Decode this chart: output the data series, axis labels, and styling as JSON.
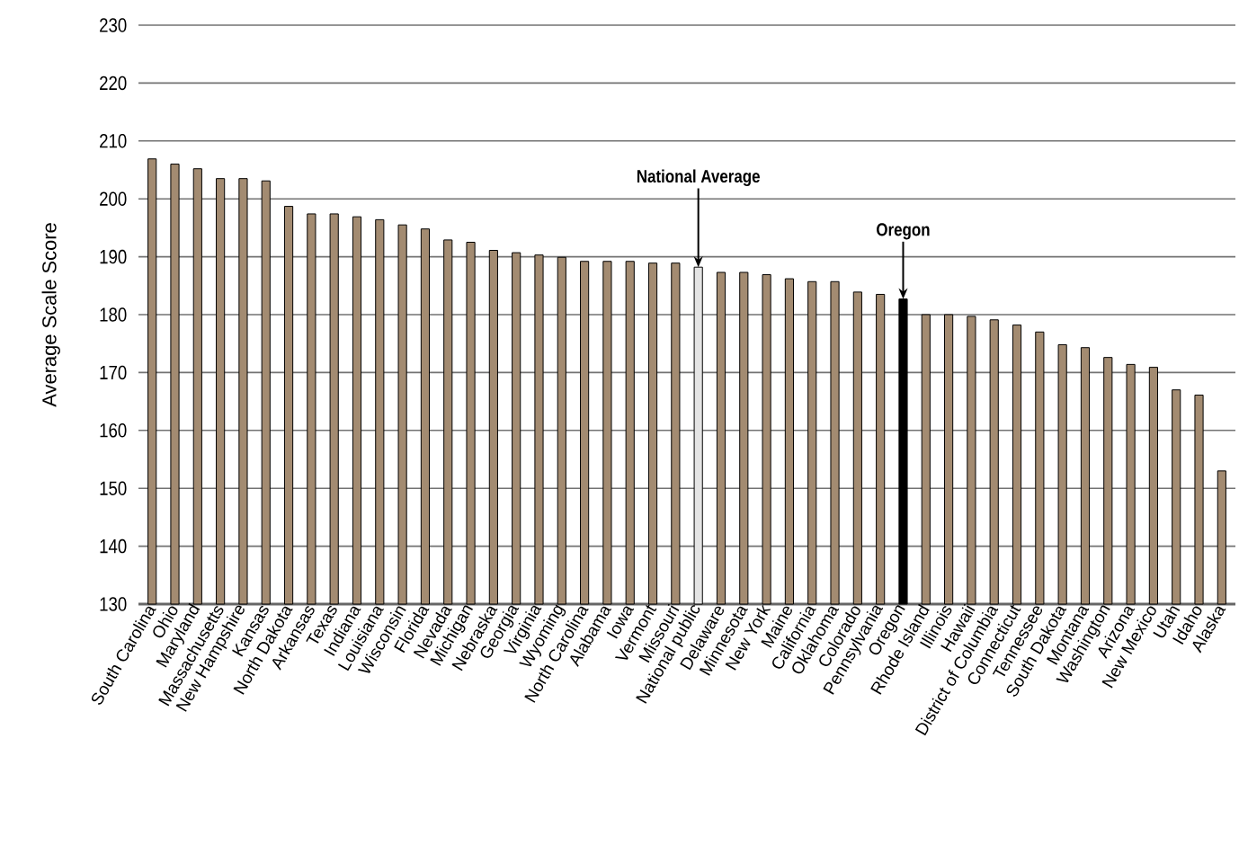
{
  "chart_data": {
    "type": "bar",
    "ylabel": "Average Scale Score",
    "categories": [
      "South Carolina",
      "Ohio",
      "Maryland",
      "Massachusetts",
      "New Hampshire",
      "Kansas",
      "North Dakota",
      "Arkansas",
      "Texas",
      "Indiana",
      "Louisiana",
      "Wisconsin",
      "Florida",
      "Nevada",
      "Michigan",
      "Nebraska",
      "Georgia",
      "Virginia",
      "Wyoming",
      "North Carolina",
      "Alabama",
      "Iowa",
      "Vermont",
      "Missouri",
      "National public",
      "Delaware",
      "Minnesota",
      "New York",
      "Maine",
      "California",
      "Oklahoma",
      "Colorado",
      "Pennsylvania",
      "Oregon",
      "Rhode Island",
      "Illinois",
      "Hawaii",
      "District of Columbia",
      "Connecticut",
      "Tennessee",
      "South Dakota",
      "Montana",
      "Washington",
      "Arizona",
      "New Mexico",
      "Utah",
      "Idaho",
      "Alaska"
    ],
    "values": [
      206.9,
      206,
      205.2,
      203.5,
      203.5,
      203.1,
      198.7,
      197.4,
      197.4,
      196.9,
      196.4,
      195.5,
      194.8,
      192.9,
      192.5,
      191.1,
      190.7,
      190.3,
      189.9,
      189.2,
      189.2,
      189.2,
      188.9,
      188.9,
      188.2,
      187.3,
      187.3,
      186.9,
      186.2,
      185.7,
      185.7,
      183.9,
      183.5,
      182.7,
      180,
      180,
      179.7,
      179.1,
      178.2,
      177,
      174.8,
      174.3,
      172.6,
      171.4,
      170.9,
      167,
      166.1,
      153
    ],
    "colors": [
      "#a38b71",
      "#a38b71",
      "#a38b71",
      "#a38b71",
      "#a38b71",
      "#a38b71",
      "#a38b71",
      "#a38b71",
      "#a38b71",
      "#a38b71",
      "#a38b71",
      "#a38b71",
      "#a38b71",
      "#a38b71",
      "#a38b71",
      "#a38b71",
      "#a38b71",
      "#a38b71",
      "#a38b71",
      "#a38b71",
      "#a38b71",
      "#a38b71",
      "#a38b71",
      "#a38b71",
      "#e4e4e4",
      "#a38b71",
      "#a38b71",
      "#a38b71",
      "#a38b71",
      "#a38b71",
      "#a38b71",
      "#a38b71",
      "#a38b71",
      "#000000",
      "#a38b71",
      "#a38b71",
      "#a38b71",
      "#a38b71",
      "#a38b71",
      "#a38b71",
      "#a38b71",
      "#a38b71",
      "#a38b71",
      "#a38b71",
      "#a38b71",
      "#a38b71",
      "#a38b71",
      "#a38b71"
    ],
    "ylim": [
      130,
      230
    ],
    "yticks": [
      130,
      140,
      150,
      160,
      170,
      180,
      190,
      200,
      210,
      220,
      230
    ],
    "grid": "y",
    "annotations": [
      {
        "text": "National Average",
        "x": "National public",
        "y": 188.2
      },
      {
        "text": "Oregon",
        "x": "Oregon",
        "y": 182.7
      }
    ]
  }
}
